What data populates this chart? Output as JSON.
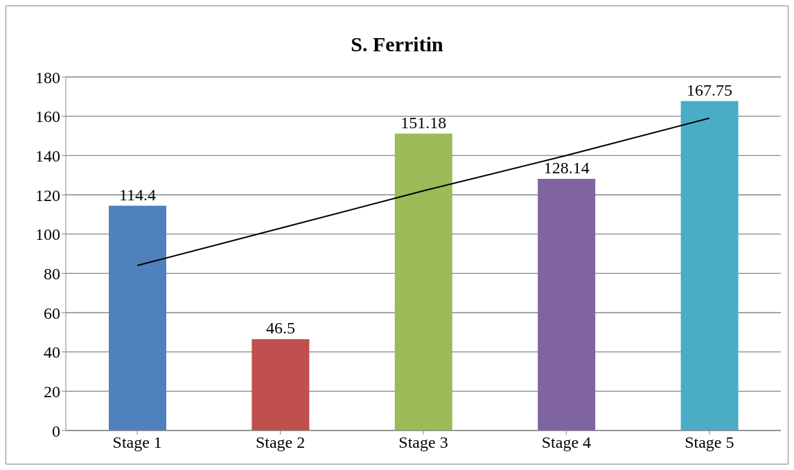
{
  "chart_data": {
    "type": "bar",
    "title": "S. Ferritin",
    "categories": [
      "Stage 1",
      "Stage 2",
      "Stage 3",
      "Stage 4",
      "Stage 5"
    ],
    "series": [
      {
        "colors": [
          "#4f81bd",
          "#c0504d",
          "#9bbb59",
          "#8064a2",
          "#4bacc6"
        ],
        "values": [
          114.4,
          46.5,
          151.18,
          128.14,
          167.75
        ],
        "value_labels": [
          "114.4",
          "46.5",
          "151.18",
          "128.14",
          "167.75"
        ]
      },
      {
        "type": "line",
        "color": "#000000",
        "values": [
          84,
          103,
          122,
          140,
          159
        ]
      }
    ],
    "ylim": [
      0,
      180
    ],
    "yticks": [
      0,
      20,
      40,
      60,
      80,
      100,
      120,
      140,
      160,
      180
    ],
    "grid": "y",
    "marker": "none"
  }
}
